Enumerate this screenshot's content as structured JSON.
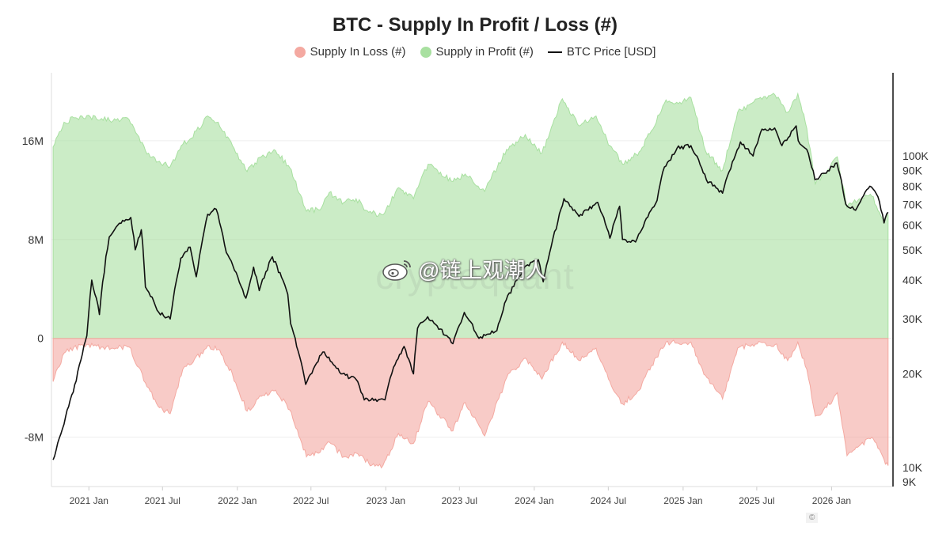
{
  "chart_data": {
    "type": "area",
    "title": "BTC - Supply In Profit / Loss (#)",
    "legend": [
      {
        "name": "Supply In Loss (#)",
        "color": "#f4a9a1",
        "shape": "dot"
      },
      {
        "name": "Supply in Profit (#)",
        "color": "#a8e0a0",
        "shape": "dot"
      },
      {
        "name": "BTC Price [USD]",
        "color": "#111111",
        "shape": "line"
      }
    ],
    "legend_position": "top-center",
    "x_range": [
      "2020-10-01",
      "2026-06-01"
    ],
    "x_ticks": [
      {
        "date": "2021-01-01",
        "label": "2021 Jan"
      },
      {
        "date": "2021-07-01",
        "label": "2021 Jul"
      },
      {
        "date": "2022-01-01",
        "label": "2022 Jan"
      },
      {
        "date": "2022-07-01",
        "label": "2022 Jul"
      },
      {
        "date": "2023-01-01",
        "label": "2023 Jan"
      },
      {
        "date": "2023-07-01",
        "label": "2023 Jul"
      },
      {
        "date": "2024-01-01",
        "label": "2024 Jan"
      },
      {
        "date": "2024-07-01",
        "label": "2024 Jul"
      },
      {
        "date": "2025-01-01",
        "label": "2025 Jan"
      },
      {
        "date": "2025-07-01",
        "label": "2025 Jul"
      },
      {
        "date": "2026-01-01",
        "label": "2026 Jan"
      }
    ],
    "y_left": {
      "range": [
        -12000000,
        21500000
      ],
      "ticks": [
        {
          "v": 16000000,
          "label": "16M"
        },
        {
          "v": 8000000,
          "label": "8M"
        },
        {
          "v": 0,
          "label": "0"
        },
        {
          "v": -8000000,
          "label": "-8M"
        }
      ]
    },
    "y_right": {
      "scale": "log",
      "range": [
        8700,
        185000
      ],
      "ticks": [
        {
          "v": 100000,
          "label": "100K"
        },
        {
          "v": 90000,
          "label": "90K"
        },
        {
          "v": 80000,
          "label": "80K"
        },
        {
          "v": 70000,
          "label": "70K"
        },
        {
          "v": 60000,
          "label": "60K"
        },
        {
          "v": 50000,
          "label": "50K"
        },
        {
          "v": 40000,
          "label": "40K"
        },
        {
          "v": 30000,
          "label": "30K"
        },
        {
          "v": 20000,
          "label": "20K"
        },
        {
          "v": 10000,
          "label": "10K"
        },
        {
          "v": 9000,
          "label": "9K"
        }
      ]
    },
    "grid": true,
    "series": [
      {
        "name": "Supply in Profit (#)",
        "color": "#a8e0a0",
        "points": [
          [
            "2020-10-05",
            15500000
          ],
          [
            "2020-11-01",
            17500000
          ],
          [
            "2020-12-15",
            18000000
          ],
          [
            "2021-02-01",
            17800000
          ],
          [
            "2021-03-01",
            17600000
          ],
          [
            "2021-04-10",
            17700000
          ],
          [
            "2021-05-20",
            15200000
          ],
          [
            "2021-06-20",
            14300000
          ],
          [
            "2021-07-20",
            13900000
          ],
          [
            "2021-08-20",
            15700000
          ],
          [
            "2021-09-10",
            16200000
          ],
          [
            "2021-10-20",
            18000000
          ],
          [
            "2021-11-15",
            17500000
          ],
          [
            "2021-12-20",
            15600000
          ],
          [
            "2022-01-25",
            13500000
          ],
          [
            "2022-03-01",
            14700000
          ],
          [
            "2022-04-05",
            15200000
          ],
          [
            "2022-05-10",
            13800000
          ],
          [
            "2022-06-20",
            10300000
          ],
          [
            "2022-07-20",
            10400000
          ],
          [
            "2022-08-15",
            11800000
          ],
          [
            "2022-09-20",
            11000000
          ],
          [
            "2022-10-20",
            11300000
          ],
          [
            "2022-11-20",
            10200000
          ],
          [
            "2022-12-25",
            10000000
          ],
          [
            "2023-02-01",
            12200000
          ],
          [
            "2023-03-10",
            11300000
          ],
          [
            "2023-04-15",
            14100000
          ],
          [
            "2023-06-15",
            12700000
          ],
          [
            "2023-07-15",
            13300000
          ],
          [
            "2023-09-01",
            11900000
          ],
          [
            "2023-10-25",
            15300000
          ],
          [
            "2023-12-10",
            16500000
          ],
          [
            "2024-01-20",
            15000000
          ],
          [
            "2024-03-10",
            19400000
          ],
          [
            "2024-04-20",
            17200000
          ],
          [
            "2024-06-01",
            18000000
          ],
          [
            "2024-07-05",
            15600000
          ],
          [
            "2024-08-05",
            14100000
          ],
          [
            "2024-09-15",
            15100000
          ],
          [
            "2024-10-15",
            16800000
          ],
          [
            "2024-11-20",
            19300000
          ],
          [
            "2024-12-20",
            19000000
          ],
          [
            "2025-01-20",
            19500000
          ],
          [
            "2025-02-25",
            15200000
          ],
          [
            "2025-04-08",
            13600000
          ],
          [
            "2025-05-15",
            18300000
          ],
          [
            "2025-07-10",
            19500000
          ],
          [
            "2025-08-15",
            19700000
          ],
          [
            "2025-09-15",
            18300000
          ],
          [
            "2025-10-10",
            19800000
          ],
          [
            "2025-11-01",
            17000000
          ],
          [
            "2025-11-22",
            12500000
          ],
          [
            "2025-12-20",
            13400000
          ],
          [
            "2026-01-15",
            14700000
          ],
          [
            "2026-02-08",
            10600000
          ],
          [
            "2026-03-10",
            11300000
          ],
          [
            "2026-04-10",
            11500000
          ],
          [
            "2026-05-10",
            9500000
          ],
          [
            "2026-05-20",
            10000000
          ]
        ]
      },
      {
        "name": "Supply In Loss (#)",
        "color": "#f4a9a1",
        "points": [
          [
            "2020-10-05",
            -3500000
          ],
          [
            "2020-11-01",
            -1200000
          ],
          [
            "2020-12-15",
            -500000
          ],
          [
            "2021-02-01",
            -700000
          ],
          [
            "2021-03-01",
            -800000
          ],
          [
            "2021-04-10",
            -700000
          ],
          [
            "2021-05-20",
            -3600000
          ],
          [
            "2021-06-20",
            -5500000
          ],
          [
            "2021-07-20",
            -6100000
          ],
          [
            "2021-08-20",
            -2500000
          ],
          [
            "2021-09-10",
            -2100000
          ],
          [
            "2021-10-20",
            -600000
          ],
          [
            "2021-11-15",
            -900000
          ],
          [
            "2021-12-20",
            -2900000
          ],
          [
            "2022-01-25",
            -5900000
          ],
          [
            "2022-03-01",
            -4700000
          ],
          [
            "2022-04-05",
            -4200000
          ],
          [
            "2022-05-10",
            -5800000
          ],
          [
            "2022-06-20",
            -9600000
          ],
          [
            "2022-07-20",
            -9300000
          ],
          [
            "2022-08-15",
            -8400000
          ],
          [
            "2022-09-20",
            -9600000
          ],
          [
            "2022-10-20",
            -9300000
          ],
          [
            "2022-11-20",
            -10100000
          ],
          [
            "2022-12-25",
            -10300000
          ],
          [
            "2023-02-01",
            -7700000
          ],
          [
            "2023-03-10",
            -8500000
          ],
          [
            "2023-04-15",
            -5100000
          ],
          [
            "2023-06-15",
            -7500000
          ],
          [
            "2023-07-15",
            -5200000
          ],
          [
            "2023-09-01",
            -7900000
          ],
          [
            "2023-10-25",
            -3200000
          ],
          [
            "2023-12-10",
            -1600000
          ],
          [
            "2024-01-20",
            -3300000
          ],
          [
            "2024-03-10",
            -300000
          ],
          [
            "2024-04-20",
            -1800000
          ],
          [
            "2024-06-01",
            -800000
          ],
          [
            "2024-07-05",
            -3500000
          ],
          [
            "2024-08-05",
            -5300000
          ],
          [
            "2024-09-15",
            -4200000
          ],
          [
            "2024-10-15",
            -2200000
          ],
          [
            "2024-11-20",
            -300000
          ],
          [
            "2024-12-20",
            -400000
          ],
          [
            "2025-01-20",
            -300000
          ],
          [
            "2025-02-25",
            -3000000
          ],
          [
            "2025-04-08",
            -4900000
          ],
          [
            "2025-05-15",
            -800000
          ],
          [
            "2025-07-10",
            -300000
          ],
          [
            "2025-08-15",
            -500000
          ],
          [
            "2025-09-15",
            -1800000
          ],
          [
            "2025-10-10",
            -300000
          ],
          [
            "2025-11-01",
            -2500000
          ],
          [
            "2025-11-22",
            -6300000
          ],
          [
            "2025-12-20",
            -5600000
          ],
          [
            "2026-01-15",
            -4400000
          ],
          [
            "2026-02-08",
            -9500000
          ],
          [
            "2026-03-10",
            -8700000
          ],
          [
            "2026-04-10",
            -8000000
          ],
          [
            "2026-05-10",
            -9800000
          ],
          [
            "2026-05-20",
            -10300000
          ]
        ]
      },
      {
        "name": "BTC Price [USD]",
        "color": "#111111",
        "axis": "right",
        "points": [
          [
            "2020-10-05",
            10600
          ],
          [
            "2020-11-01",
            13800
          ],
          [
            "2020-12-01",
            19000
          ],
          [
            "2020-12-27",
            26500
          ],
          [
            "2021-01-08",
            40000
          ],
          [
            "2021-01-27",
            31000
          ],
          [
            "2021-02-20",
            55000
          ],
          [
            "2021-03-13",
            60000
          ],
          [
            "2021-04-14",
            63500
          ],
          [
            "2021-04-25",
            50000
          ],
          [
            "2021-05-10",
            58000
          ],
          [
            "2021-05-20",
            38000
          ],
          [
            "2021-06-22",
            31500
          ],
          [
            "2021-07-20",
            30000
          ],
          [
            "2021-08-15",
            47000
          ],
          [
            "2021-09-07",
            51000
          ],
          [
            "2021-09-22",
            41000
          ],
          [
            "2021-10-20",
            65000
          ],
          [
            "2021-11-10",
            67500
          ],
          [
            "2021-12-05",
            49000
          ],
          [
            "2022-01-22",
            35000
          ],
          [
            "2022-02-10",
            44000
          ],
          [
            "2022-02-24",
            37000
          ],
          [
            "2022-03-28",
            47500
          ],
          [
            "2022-05-05",
            36000
          ],
          [
            "2022-05-12",
            29000
          ],
          [
            "2022-06-18",
            18500
          ],
          [
            "2022-07-30",
            23500
          ],
          [
            "2022-09-13",
            20000
          ],
          [
            "2022-10-20",
            19200
          ],
          [
            "2022-11-09",
            16500
          ],
          [
            "2022-12-30",
            16500
          ],
          [
            "2023-01-20",
            21000
          ],
          [
            "2023-02-15",
            24500
          ],
          [
            "2023-03-10",
            20000
          ],
          [
            "2023-03-20",
            28000
          ],
          [
            "2023-04-14",
            30500
          ],
          [
            "2023-06-15",
            25000
          ],
          [
            "2023-07-13",
            31500
          ],
          [
            "2023-08-18",
            26000
          ],
          [
            "2023-10-01",
            27500
          ],
          [
            "2023-10-24",
            34500
          ],
          [
            "2023-12-08",
            44000
          ],
          [
            "2024-01-11",
            46500
          ],
          [
            "2024-01-23",
            39500
          ],
          [
            "2024-02-28",
            61500
          ],
          [
            "2024-03-14",
            73000
          ],
          [
            "2024-04-20",
            64000
          ],
          [
            "2024-06-05",
            71000
          ],
          [
            "2024-07-05",
            54500
          ],
          [
            "2024-07-29",
            69000
          ],
          [
            "2024-08-05",
            54000
          ],
          [
            "2024-09-06",
            53000
          ],
          [
            "2024-10-29",
            72000
          ],
          [
            "2024-11-12",
            89000
          ],
          [
            "2024-12-17",
            106000
          ],
          [
            "2025-01-20",
            108000
          ],
          [
            "2025-02-27",
            84000
          ],
          [
            "2025-04-08",
            76000
          ],
          [
            "2025-05-22",
            111000
          ],
          [
            "2025-06-22",
            100000
          ],
          [
            "2025-07-14",
            122000
          ],
          [
            "2025-08-14",
            123000
          ],
          [
            "2025-09-01",
            108000
          ],
          [
            "2025-10-06",
            125000
          ],
          [
            "2025-10-11",
            112000
          ],
          [
            "2025-11-05",
            102000
          ],
          [
            "2025-11-21",
            84000
          ],
          [
            "2025-12-15",
            88000
          ],
          [
            "2026-01-14",
            95000
          ],
          [
            "2026-02-05",
            70000
          ],
          [
            "2026-03-01",
            67000
          ],
          [
            "2026-04-05",
            80000
          ],
          [
            "2026-04-25",
            74000
          ],
          [
            "2026-05-10",
            61000
          ],
          [
            "2026-05-20",
            66000
          ]
        ]
      }
    ]
  },
  "watermark": "cryptoquant",
  "weibo_handle": "@链上观潮人",
  "footer_text": "©"
}
